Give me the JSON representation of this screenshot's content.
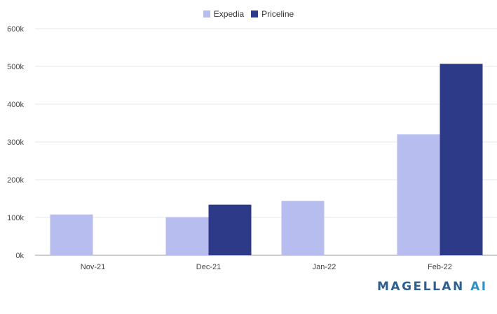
{
  "chart_data": {
    "type": "bar",
    "categories": [
      "Nov-21",
      "Dec-21",
      "Jan-22",
      "Feb-22"
    ],
    "series": [
      {
        "name": "Expedia",
        "values": [
          108000,
          101000,
          144000,
          320000
        ],
        "color": "#b8bdf0"
      },
      {
        "name": "Priceline",
        "values": [
          0,
          134000,
          0,
          507000
        ],
        "color": "#2d3a87"
      }
    ],
    "y_ticks": [
      "0k",
      "100k",
      "200k",
      "300k",
      "400k",
      "500k",
      "600k"
    ],
    "ylim": [
      0,
      600000
    ],
    "grid": true,
    "legend_position": "top-center"
  },
  "logo": {
    "word1": "MAGELLAN",
    "word2": "AI"
  }
}
